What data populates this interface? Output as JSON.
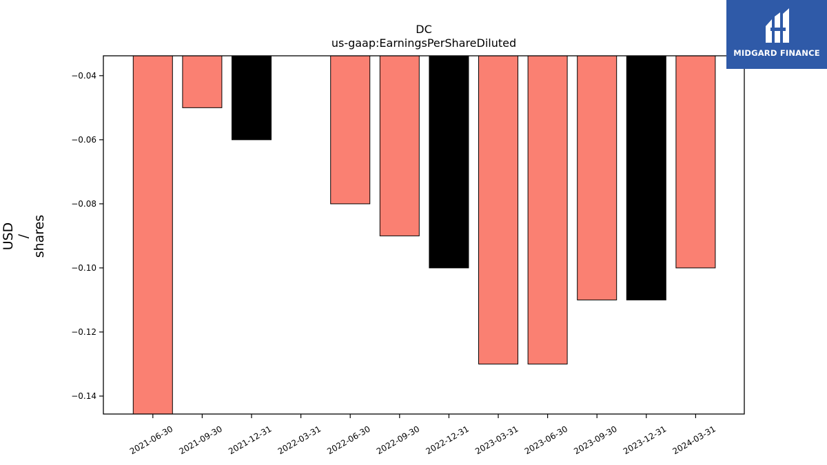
{
  "chart_data": {
    "type": "bar",
    "title": "DC",
    "subtitle": "us-gaap:EarningsPerShareDiluted",
    "ylabel": [
      "USD",
      "/",
      "shares"
    ],
    "xlabel": "",
    "categories": [
      "2021-06-30",
      "2021-09-30",
      "2021-12-31",
      "2022-03-31",
      "2022-06-30",
      "2022-09-30",
      "2022-12-31",
      "2023-03-31",
      "2023-06-30",
      "2023-09-30",
      "2023-12-31",
      "2024-03-31"
    ],
    "values": [
      -0.15,
      -0.05,
      -0.06,
      null,
      -0.08,
      -0.09,
      -0.1,
      -0.13,
      -0.13,
      -0.11,
      -0.11,
      -0.1
    ],
    "bar_colors": [
      "#fa8072",
      "#fa8072",
      "#000000",
      null,
      "#fa8072",
      "#fa8072",
      "#000000",
      "#fa8072",
      "#fa8072",
      "#fa8072",
      "#000000",
      "#fa8072"
    ],
    "ylim": [
      -0.1456,
      -0.0338
    ],
    "yticks": [
      -0.04,
      -0.06,
      -0.08,
      -0.1,
      -0.12,
      -0.14
    ],
    "ytick_labels": [
      "−0.04",
      "−0.06",
      "−0.08",
      "−0.10",
      "−0.12",
      "−0.14"
    ],
    "grid": false
  },
  "logo": {
    "text": "MIDGARD FINANCE",
    "color": "#2f5aa8"
  }
}
